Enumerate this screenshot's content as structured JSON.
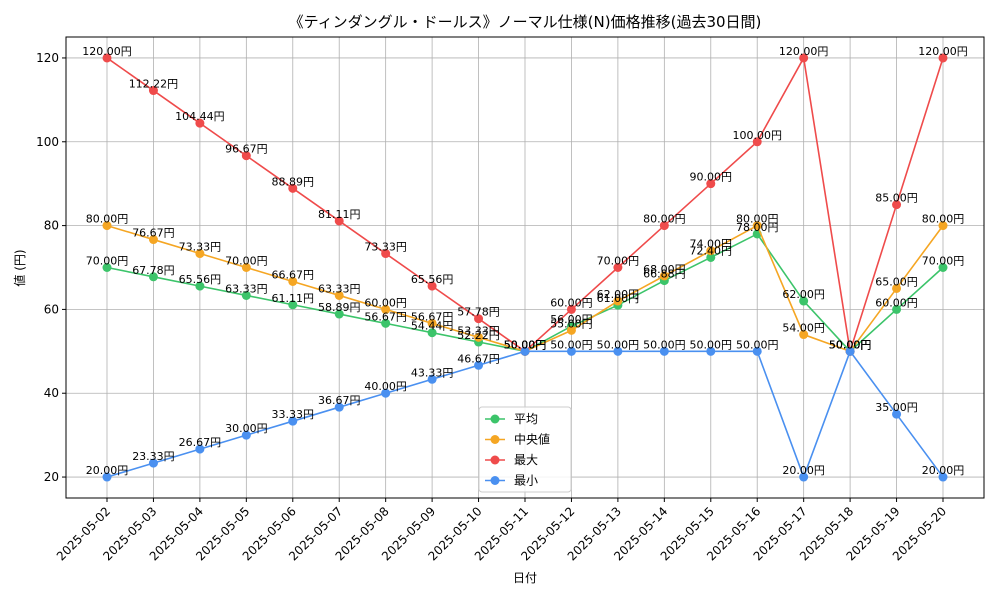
{
  "chart_data": {
    "type": "line",
    "title": "《ティンダングル・ドールス》ノーマル仕様(N)価格推移(過去30日間)",
    "xlabel": "日付",
    "ylabel": "値 (円)",
    "ylim": [
      15,
      125
    ],
    "yticks": [
      20,
      40,
      60,
      80,
      100,
      120
    ],
    "grid": true,
    "legend_position": "lower-center",
    "label_suffix": "円",
    "categories": [
      "2025-05-02",
      "2025-05-03",
      "2025-05-04",
      "2025-05-05",
      "2025-05-06",
      "2025-05-07",
      "2025-05-08",
      "2025-05-09",
      "2025-05-10",
      "2025-05-11",
      "2025-05-12",
      "2025-05-13",
      "2025-05-14",
      "2025-05-15",
      "2025-05-16",
      "2025-05-17",
      "2025-05-18",
      "2025-05-19",
      "2025-05-20"
    ],
    "series": [
      {
        "name": "平均",
        "color": "#3cc46a",
        "values": [
          70.0,
          67.78,
          65.56,
          63.33,
          61.11,
          58.89,
          56.67,
          54.44,
          52.22,
          50.0,
          56.0,
          61.0,
          66.88,
          72.4,
          78.0,
          62.0,
          50.0,
          60.0,
          70.0
        ]
      },
      {
        "name": "中央値",
        "color": "#f5a623",
        "values": [
          80.0,
          76.67,
          73.33,
          70.0,
          66.67,
          63.33,
          60.0,
          56.67,
          53.33,
          50.0,
          55.0,
          62.0,
          68.0,
          74.0,
          80.0,
          54.0,
          50.0,
          65.0,
          80.0
        ]
      },
      {
        "name": "最大",
        "color": "#ef4b4b",
        "values": [
          120.0,
          112.22,
          104.44,
          96.67,
          88.89,
          81.11,
          73.33,
          65.56,
          57.78,
          50.0,
          60.0,
          70.0,
          80.0,
          90.0,
          100.0,
          120.0,
          50.0,
          85.0,
          120.0
        ]
      },
      {
        "name": "最小",
        "color": "#4a90f0",
        "values": [
          20.0,
          23.33,
          26.67,
          30.0,
          33.33,
          36.67,
          40.0,
          43.33,
          46.67,
          50.0,
          50.0,
          50.0,
          50.0,
          50.0,
          50.0,
          20.0,
          50.0,
          35.0,
          20.0
        ]
      }
    ]
  }
}
